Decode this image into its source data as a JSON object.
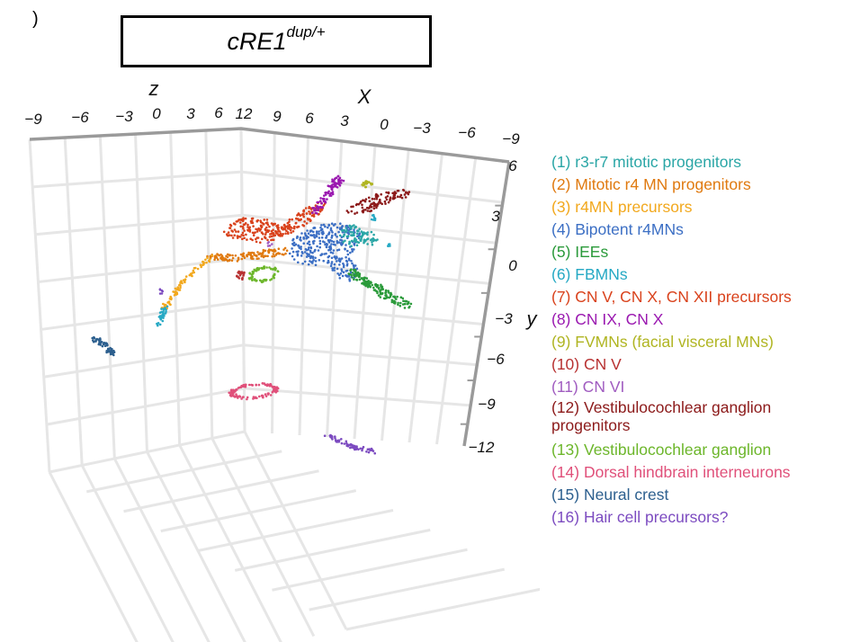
{
  "panel_letter": ")",
  "title": {
    "main": "cRE1",
    "superscript": "dup/+"
  },
  "chart_data": {
    "type": "scatter",
    "projection": "3d",
    "grid": true,
    "axes": {
      "x": {
        "label": "X",
        "ticks": [
          "12",
          "9",
          "6",
          "3",
          "0",
          "−3",
          "−6",
          "−9"
        ]
      },
      "z": {
        "label": "z",
        "ticks": [
          "−9",
          "−6",
          "−3",
          "0",
          "3",
          "6"
        ]
      },
      "y": {
        "label": "y",
        "ticks": [
          "6",
          "3",
          "0",
          "−3",
          "−6",
          "−9",
          "−12"
        ]
      }
    },
    "legend_position": "right",
    "series": [
      {
        "name": "(1) r3-r7 mitotic progenitors",
        "color": "#2aa6a6"
      },
      {
        "name": "(2) Mitotic r4 MN progenitors",
        "color": "#e07a10"
      },
      {
        "name": "(3) r4MN precursors",
        "color": "#f2a81d"
      },
      {
        "name": "(4) Bipotent r4MNs",
        "color": "#3c6fc4"
      },
      {
        "name": "(5) IEEs",
        "color": "#2a9a3a"
      },
      {
        "name": "(6) FBMNs",
        "color": "#26a9c4"
      },
      {
        "name": "(7) CN V, CN X, CN XII precursors",
        "color": "#d9421c"
      },
      {
        "name": "(8) CN IX, CN X",
        "color": "#9a18b0"
      },
      {
        "name": "(9) FVMNs (facial visceral MNs)",
        "color": "#b0b522"
      },
      {
        "name": "(10) CN V",
        "color": "#b83232"
      },
      {
        "name": "(11) CN VI",
        "color": "#a05cc0"
      },
      {
        "name": "(12) Vestibulocochlear ganglion progenitors",
        "color": "#8c1a1a"
      },
      {
        "name": "(13) Vestibulocochlear ganglion",
        "color": "#6cb62a"
      },
      {
        "name": "(14) Dorsal hindbrain interneurons",
        "color": "#e0507a"
      },
      {
        "name": "(15) Neural crest",
        "color": "#2c5f8e"
      },
      {
        "name": "(16) Hair cell precursors?",
        "color": "#7c4bc0"
      }
    ]
  }
}
